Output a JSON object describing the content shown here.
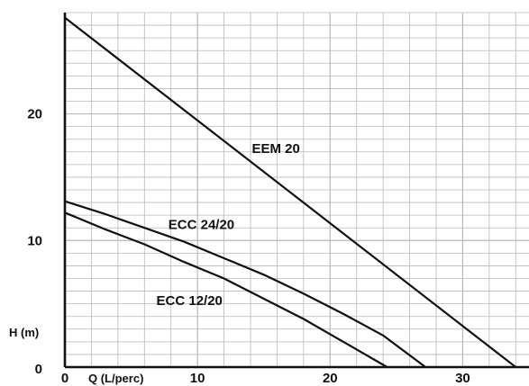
{
  "chart_data": {
    "type": "line",
    "title": "",
    "xlabel": "Q (L/perc)",
    "ylabel": "H (m)",
    "xlim": [
      0,
      35
    ],
    "ylim": [
      0,
      28
    ],
    "grid": true,
    "colors": {
      "line": "#111111",
      "grid": "#b8b8b8",
      "axis": "#111111",
      "background": "#ffffff"
    },
    "x_ticks": [
      {
        "value": 0,
        "label": "0"
      },
      {
        "value": 10,
        "label": "10"
      },
      {
        "value": 20,
        "label": "20"
      },
      {
        "value": 30,
        "label": "30"
      }
    ],
    "y_ticks": [
      {
        "value": 0,
        "label": "0"
      },
      {
        "value": 10,
        "label": "10"
      },
      {
        "value": 20,
        "label": "20"
      }
    ],
    "series": [
      {
        "name": "EEM 20",
        "x": [
          0,
          34
        ],
        "y": [
          27.6,
          0
        ]
      },
      {
        "name": "ECC 24/20",
        "x": [
          0,
          3,
          6,
          9,
          12,
          15,
          18,
          21,
          24,
          27.2
        ],
        "y": [
          13.1,
          12.1,
          11.0,
          9.9,
          8.6,
          7.3,
          5.8,
          4.2,
          2.5,
          0
        ]
      },
      {
        "name": "ECC 12/20",
        "x": [
          0,
          3,
          6,
          9,
          12,
          15,
          18,
          21,
          24.3
        ],
        "y": [
          12.2,
          10.9,
          9.7,
          8.3,
          7.0,
          5.4,
          3.8,
          2.0,
          0
        ]
      }
    ],
    "labels": [
      {
        "text": "EEM 20",
        "series": "EEM 20"
      },
      {
        "text": "ECC 24/20",
        "series": "ECC 24/20"
      },
      {
        "text": "ECC 12/20",
        "series": "ECC 12/20"
      }
    ]
  }
}
